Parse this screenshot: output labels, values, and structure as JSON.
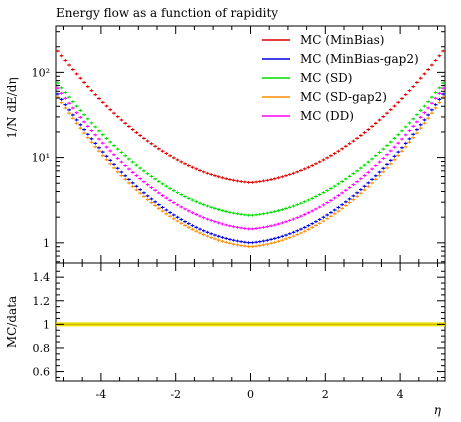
{
  "chart_data": {
    "type": "line",
    "title": "Energy flow as a function of rapidity",
    "xlabel": "η",
    "xlim": [
      -5.2,
      5.2
    ],
    "x_ticks": [
      -4,
      -2,
      0,
      2,
      4
    ],
    "x_tick_labels": [
      "-4",
      "-2",
      "0",
      "2",
      "4"
    ],
    "main_panel": {
      "ylabel": "1/N dE/dη",
      "yscale": "log",
      "ylim": [
        0.58,
        350
      ],
      "y_ticks": [
        1,
        10,
        100
      ],
      "y_tick_labels": [
        "1",
        "10¹",
        "10²"
      ],
      "legend_position": "top-right",
      "series": [
        {
          "name": "MC (MinBias)",
          "color": "#e00000",
          "value_at_0": 5.1,
          "value_at_edge": 190
        },
        {
          "name": "MC (MinBias-gap2)",
          "color": "#0000e0",
          "value_at_0": 1.0,
          "value_at_edge": 60
        },
        {
          "name": "MC (SD)",
          "color": "#00dd00",
          "value_at_0": 2.1,
          "value_at_edge": 80
        },
        {
          "name": "MC (SD-gap2)",
          "color": "#ff8c00",
          "value_at_0": 0.9,
          "value_at_edge": 55
        },
        {
          "name": "MC (DD)",
          "color": "#ff00ff",
          "value_at_0": 1.45,
          "value_at_edge": 70
        }
      ]
    },
    "ratio_panel": {
      "ylabel": "MC/data",
      "ylim": [
        0.52,
        1.52
      ],
      "y_ticks": [
        0.6,
        0.8,
        1,
        1.2,
        1.4
      ],
      "y_tick_labels": [
        "0.6",
        "0.8",
        "1",
        "1.2",
        "1.4"
      ],
      "band_color": "#f0e000",
      "line_value": 1.0
    }
  }
}
